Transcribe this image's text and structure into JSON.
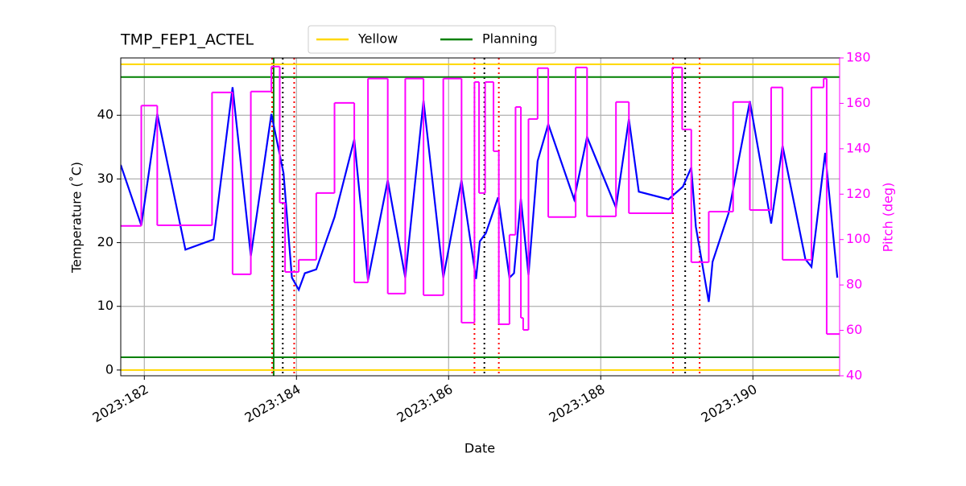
{
  "chart_data": {
    "type": "line",
    "title": "TMP_FEP1_ACTEL",
    "xlabel": "Date",
    "ylabel": "Temperature (˚C)",
    "y2label": "Pitch (deg)",
    "xlim": [
      181.69,
      191.14
    ],
    "ylim": [
      -0.9,
      49.0
    ],
    "y2lim": [
      40,
      180
    ],
    "xticks": [
      {
        "value": 182,
        "label": "2023:182"
      },
      {
        "value": 184,
        "label": "2023:184"
      },
      {
        "value": 186,
        "label": "2023:186"
      },
      {
        "value": 188,
        "label": "2023:188"
      },
      {
        "value": 190,
        "label": "2023:190"
      }
    ],
    "yticks": [
      0,
      10,
      20,
      30,
      40
    ],
    "y2ticks": [
      40,
      60,
      80,
      100,
      120,
      140,
      160,
      180
    ],
    "y2color": "magenta",
    "grid": true,
    "legend": "upper center",
    "series": [
      {
        "name": "Yellow",
        "color": "gold",
        "style": "hline",
        "values": [
          0,
          48
        ]
      },
      {
        "name": "Planning",
        "color": "green",
        "style": "hline",
        "values": [
          2,
          46
        ]
      },
      {
        "color": "#0000ff",
        "x": [
          181.69,
          181.96,
          182.17,
          182.54,
          182.91,
          183.16,
          183.4,
          183.67,
          183.83,
          183.94,
          184.03,
          184.11,
          184.26,
          184.5,
          184.76,
          184.94,
          185.2,
          185.43,
          185.67,
          185.93,
          186.17,
          186.36,
          186.41,
          186.49,
          186.65,
          186.8,
          186.86,
          186.95,
          187.05,
          187.17,
          187.31,
          187.65,
          187.82,
          188.2,
          188.37,
          188.5,
          188.89,
          189.08,
          189.19,
          189.25,
          189.42,
          189.47,
          189.68,
          189.96,
          190.24,
          190.39,
          190.69,
          190.77,
          190.95,
          191.11
        ],
        "values": [
          32.2,
          22.7,
          40.2,
          18.9,
          20.5,
          44.4,
          17.9,
          40.2,
          30.9,
          14.5,
          12.6,
          15.2,
          15.8,
          24.0,
          36.2,
          14.1,
          29.8,
          14.5,
          42.3,
          14.5,
          29.8,
          14.3,
          20.2,
          21.5,
          27.1,
          14.5,
          15.2,
          26.9,
          14.9,
          32.8,
          38.6,
          26.8,
          36.6,
          25.5,
          39.4,
          28.0,
          26.8,
          28.8,
          31.8,
          22.5,
          10.7,
          17.0,
          24.6,
          42.2,
          23.0,
          35.2,
          17.4,
          16.2,
          34.1,
          14.5
        ]
      },
      {
        "color": "magenta",
        "axis": "y2",
        "step": "post",
        "x": [
          181.69,
          181.96,
          182.17,
          182.89,
          183.16,
          183.4,
          183.67,
          183.78,
          183.85,
          184.03,
          184.26,
          184.5,
          184.76,
          184.94,
          185.2,
          185.43,
          185.67,
          185.93,
          186.17,
          186.34,
          186.4,
          186.48,
          186.59,
          186.66,
          186.8,
          186.88,
          186.95,
          186.98,
          187.05,
          187.17,
          187.31,
          187.67,
          187.82,
          188.2,
          188.37,
          188.94,
          189.07,
          189.19,
          189.42,
          189.74,
          189.96,
          190.24,
          190.39,
          190.77,
          190.93,
          190.97,
          191.14
        ],
        "values": [
          106.0,
          159.0,
          106.3,
          164.8,
          84.7,
          165.2,
          176.2,
          116.2,
          85.7,
          91.1,
          120.5,
          160.2,
          81.1,
          170.9,
          76.2,
          170.9,
          75.5,
          170.9,
          63.4,
          169.4,
          120.5,
          169.4,
          138.9,
          62.7,
          102.1,
          158.4,
          65.5,
          60.2,
          153.1,
          175.5,
          109.9,
          175.8,
          110.2,
          160.6,
          111.6,
          175.8,
          148.5,
          90.0,
          112.3,
          160.6,
          113.0,
          167.0,
          91.1,
          167.0,
          170.9,
          58.4,
          58.4
        ]
      }
    ],
    "vlines": [
      {
        "x": 183.68,
        "color": "red",
        "style": "dotted"
      },
      {
        "x": 183.97,
        "color": "red",
        "style": "dotted"
      },
      {
        "x": 186.34,
        "color": "red",
        "style": "dotted"
      },
      {
        "x": 186.66,
        "color": "red",
        "style": "dotted"
      },
      {
        "x": 188.95,
        "color": "red",
        "style": "dotted"
      },
      {
        "x": 189.3,
        "color": "red",
        "style": "dotted"
      },
      {
        "x": 183.82,
        "color": "black",
        "style": "dotted"
      },
      {
        "x": 186.47,
        "color": "black",
        "style": "dotted"
      },
      {
        "x": 189.11,
        "color": "black",
        "style": "dotted"
      },
      {
        "x": 183.7,
        "color": "green",
        "style": "solid"
      }
    ]
  }
}
